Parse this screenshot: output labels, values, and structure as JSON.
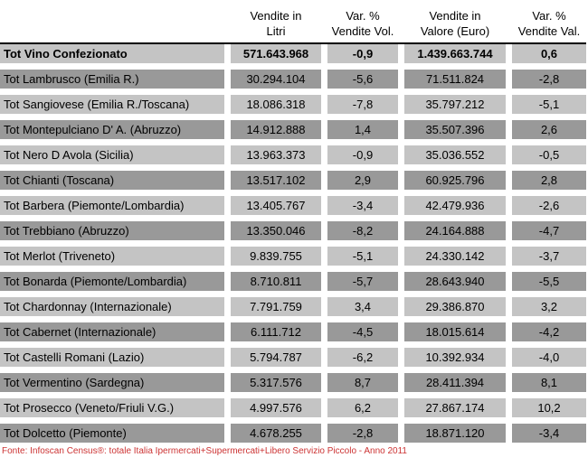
{
  "colors": {
    "row_dark_gray": "#999999",
    "row_light_gray": "#c4c4c4",
    "header_separator": "#000000",
    "text": "#000000",
    "source_note_red": "#cc3333",
    "background": "#ffffff"
  },
  "chart_data": {
    "type": "table",
    "column_headers": {
      "label": "",
      "vendite_litri": "Vendite in\nLitri",
      "var_pct_vol": "Var. %\nVendite Vol.",
      "vendite_valore": "Vendite in\nValore (Euro)",
      "var_pct_val": "Var. %\nVendite Val."
    },
    "rows": [
      {
        "label": "Tot Vino Confezionato",
        "vendite_litri": "571.643.968",
        "var_pct_vol": "-0,9",
        "vendite_valore": "1.439.663.744",
        "var_pct_val": "0,6"
      },
      {
        "label": "Tot Lambrusco (Emilia R.)",
        "vendite_litri": "30.294.104",
        "var_pct_vol": "-5,6",
        "vendite_valore": "71.511.824",
        "var_pct_val": "-2,8"
      },
      {
        "label": "Tot Sangiovese (Emilia R./Toscana)",
        "vendite_litri": "18.086.318",
        "var_pct_vol": "-7,8",
        "vendite_valore": "35.797.212",
        "var_pct_val": "-5,1"
      },
      {
        "label": "Tot Montepulciano D' A. (Abruzzo)",
        "vendite_litri": "14.912.888",
        "var_pct_vol": "1,4",
        "vendite_valore": "35.507.396",
        "var_pct_val": "2,6"
      },
      {
        "label": "Tot Nero D Avola (Sicilia)",
        "vendite_litri": "13.963.373",
        "var_pct_vol": "-0,9",
        "vendite_valore": "35.036.552",
        "var_pct_val": "-0,5"
      },
      {
        "label": "Tot Chianti (Toscana)",
        "vendite_litri": "13.517.102",
        "var_pct_vol": "2,9",
        "vendite_valore": "60.925.796",
        "var_pct_val": "2,8"
      },
      {
        "label": "Tot Barbera (Piemonte/Lombardia)",
        "vendite_litri": "13.405.767",
        "var_pct_vol": "-3,4",
        "vendite_valore": "42.479.936",
        "var_pct_val": "-2,6"
      },
      {
        "label": "Tot Trebbiano (Abruzzo)",
        "vendite_litri": "13.350.046",
        "var_pct_vol": "-8,2",
        "vendite_valore": "24.164.888",
        "var_pct_val": "-4,7"
      },
      {
        "label": "Tot Merlot (Triveneto)",
        "vendite_litri": "9.839.755",
        "var_pct_vol": "-5,1",
        "vendite_valore": "24.330.142",
        "var_pct_val": "-3,7"
      },
      {
        "label": "Tot Bonarda (Piemonte/Lombardia)",
        "vendite_litri": "8.710.811",
        "var_pct_vol": "-5,7",
        "vendite_valore": "28.643.940",
        "var_pct_val": "-5,5"
      },
      {
        "label": "Tot Chardonnay (Internazionale)",
        "vendite_litri": "7.791.759",
        "var_pct_vol": "3,4",
        "vendite_valore": "29.386.870",
        "var_pct_val": "3,2"
      },
      {
        "label": "Tot Cabernet (Internazionale)",
        "vendite_litri": "6.111.712",
        "var_pct_vol": "-4,5",
        "vendite_valore": "18.015.614",
        "var_pct_val": "-4,2"
      },
      {
        "label": "Tot Castelli Romani (Lazio)",
        "vendite_litri": "5.794.787",
        "var_pct_vol": "-6,2",
        "vendite_valore": "10.392.934",
        "var_pct_val": "-4,0"
      },
      {
        "label": "Tot Vermentino (Sardegna)",
        "vendite_litri": "5.317.576",
        "var_pct_vol": "8,7",
        "vendite_valore": "28.411.394",
        "var_pct_val": "8,1"
      },
      {
        "label": "Tot Prosecco (Veneto/Friuli V.G.)",
        "vendite_litri": "4.997.576",
        "var_pct_vol": "6,2",
        "vendite_valore": "27.867.174",
        "var_pct_val": "10,2"
      },
      {
        "label": "Tot Dolcetto (Piemonte)",
        "vendite_litri": "4.678.255",
        "var_pct_vol": "-2,8",
        "vendite_valore": "18.871.120",
        "var_pct_val": "-3,4"
      }
    ],
    "source_note": "Fonte: Infoscan Census®: totale Italia Ipermercati+Supermercati+Libero Servizio Piccolo - Anno 2011"
  }
}
